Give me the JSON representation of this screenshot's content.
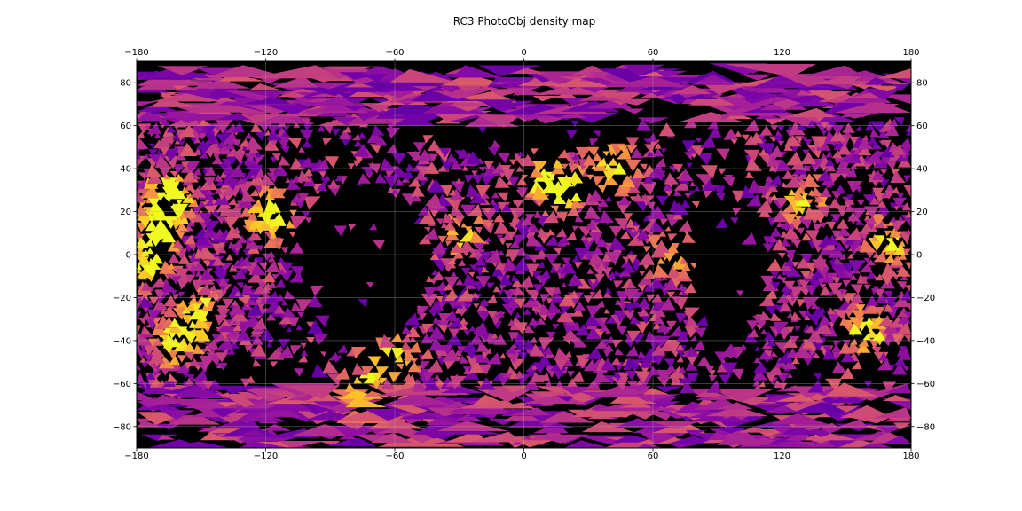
{
  "chart_data": {
    "type": "heatmap",
    "title": "RC3 PhotoObj density map",
    "xlabel": "",
    "ylabel": "",
    "xlim": [
      -180,
      180
    ],
    "ylim": [
      -90,
      90
    ],
    "x_ticks": [
      -180,
      -120,
      -60,
      0,
      60,
      120,
      180
    ],
    "x_tick_labels": [
      "−180",
      "−120",
      "−60",
      "0",
      "60",
      "120",
      "180"
    ],
    "y_ticks": [
      80,
      60,
      40,
      20,
      0,
      -20,
      -40,
      -60,
      -80
    ],
    "y_tick_labels": [
      "80",
      "60",
      "40",
      "20",
      "0",
      "−20",
      "−40",
      "−60",
      "−80"
    ],
    "x_tick_label_positions": [
      "top",
      "bottom"
    ],
    "y_tick_label_positions": [
      "left",
      "right"
    ],
    "grid": true,
    "background_color": "#000000",
    "colormap": "plasma",
    "colormap_stops": [
      "#0d0887",
      "#46039f",
      "#7201a8",
      "#9c179e",
      "#bd3786",
      "#d8576b",
      "#ed7953",
      "#fb9f3a",
      "#fdca26",
      "#f0f921"
    ],
    "cells": "triangular sky pixels; dense bands along lon -180..-120 (lat -50..60), a ring around lon -60..80 (lat -70..50) and lon 80..180; empty regions near lon -100..-50 (lat -40..30) and lon 80..110 (lat -40..30); brightest spots near (-165, 27), (-170, 12), (-118, 18), (-162, -40), (45, 40), (-75, -62)",
    "hotspots": [
      {
        "lon": -165,
        "lat": 27,
        "intensity": 0.98
      },
      {
        "lon": -170,
        "lat": 12,
        "intensity": 0.85
      },
      {
        "lon": -118,
        "lat": 18,
        "intensity": 0.8
      },
      {
        "lon": -162,
        "lat": -40,
        "intensity": 0.8
      },
      {
        "lon": -175,
        "lat": -5,
        "intensity": 0.7
      },
      {
        "lon": -150,
        "lat": -28,
        "intensity": 0.65
      },
      {
        "lon": 42,
        "lat": 40,
        "intensity": 0.75
      },
      {
        "lon": 20,
        "lat": 30,
        "intensity": 0.65
      },
      {
        "lon": 10,
        "lat": 35,
        "intensity": 0.6
      },
      {
        "lon": -75,
        "lat": -62,
        "intensity": 0.75
      },
      {
        "lon": -60,
        "lat": -48,
        "intensity": 0.6
      },
      {
        "lon": 160,
        "lat": -35,
        "intensity": 0.7
      },
      {
        "lon": 170,
        "lat": 5,
        "intensity": 0.65
      },
      {
        "lon": 130,
        "lat": 25,
        "intensity": 0.55
      },
      {
        "lon": 70,
        "lat": 0,
        "intensity": 0.55
      },
      {
        "lon": -30,
        "lat": 10,
        "intensity": 0.5
      }
    ]
  }
}
